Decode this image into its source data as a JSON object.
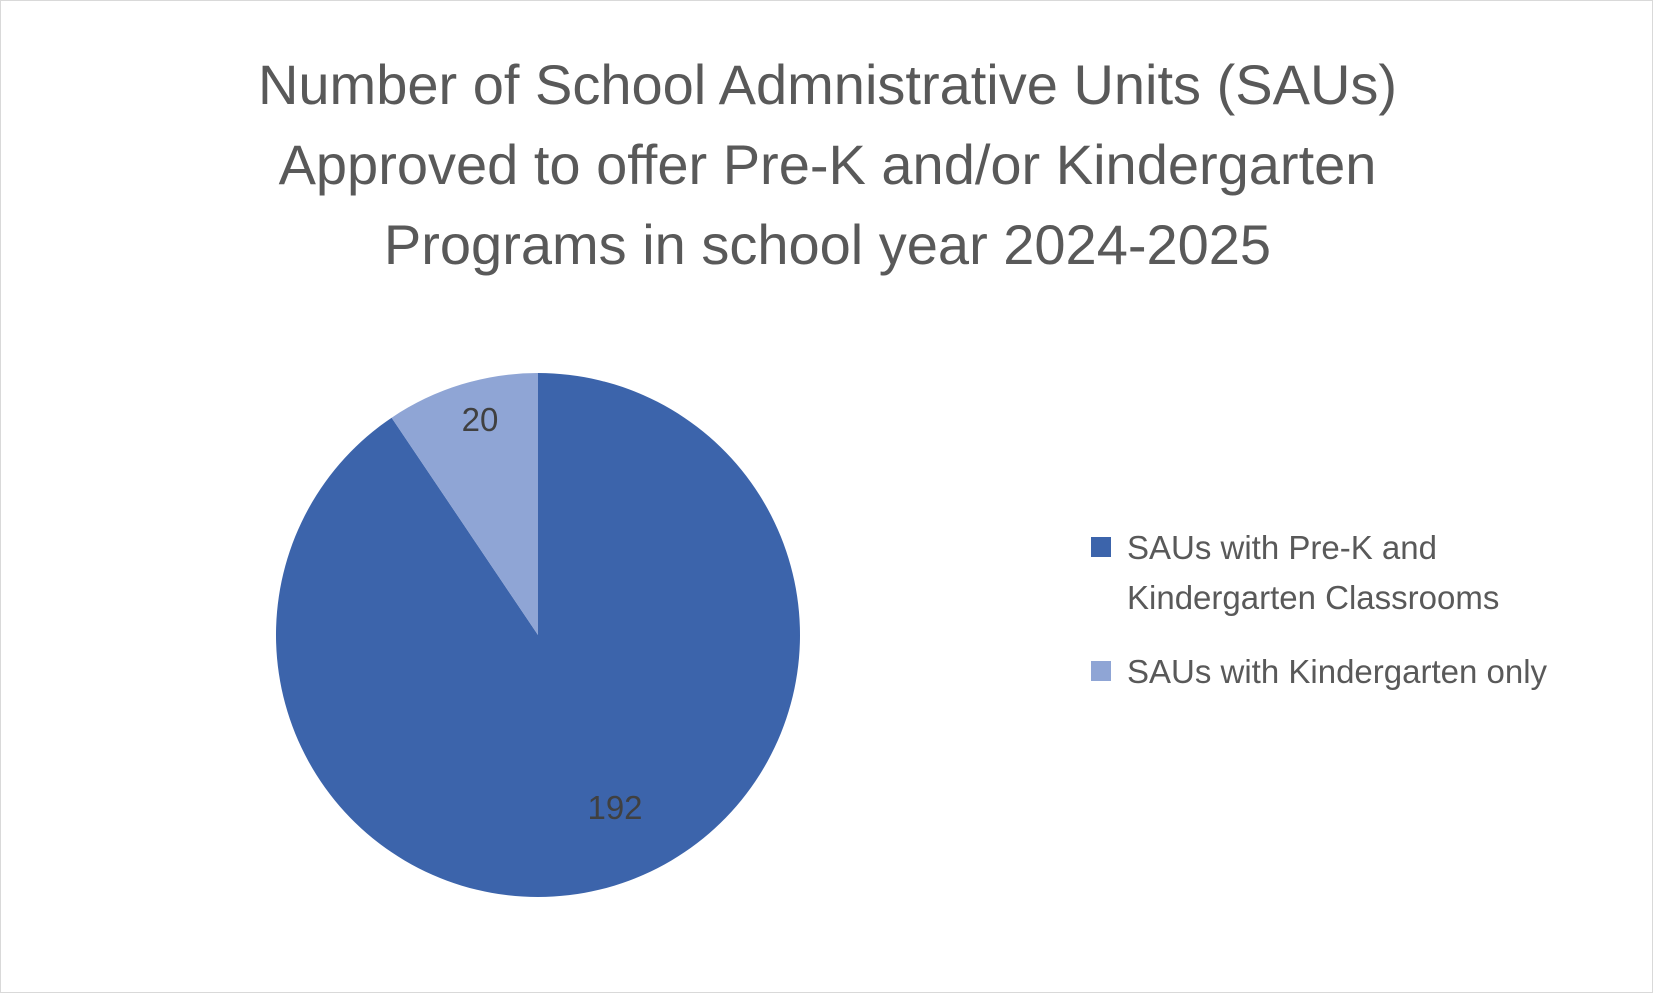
{
  "chart_data": {
    "type": "pie",
    "title_lines": [
      "Number of School Admnistrative Units (SAUs)",
      "Approved to offer Pre-K and/or Kindergarten",
      "Programs in school year 2024-2025"
    ],
    "slices": [
      {
        "label": "SAUs with Pre-K and Kindergarten Classrooms",
        "legend_lines": [
          "SAUs with Pre-K and",
          "Kindergarten Classrooms"
        ],
        "value": 192,
        "color": "#3c64ab"
      },
      {
        "label": "SAUs with Kindergarten only",
        "legend_lines": [
          "SAUs with Kindergarten only"
        ],
        "value": 20,
        "color": "#8fa5d5"
      }
    ],
    "legend_position": "right",
    "data_labels": true
  }
}
